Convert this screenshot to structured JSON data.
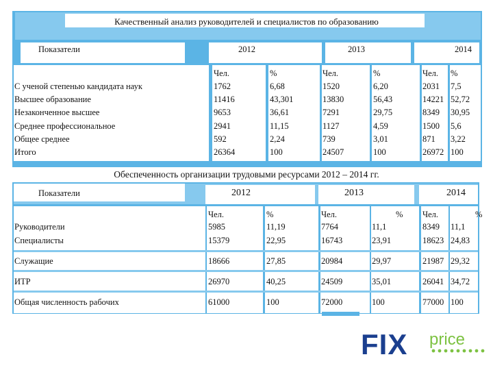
{
  "table1": {
    "title": "Качественный анализ руководителей и специалистов по образованию",
    "header_label": "Показатели",
    "years": [
      "2012",
      "2013",
      "2014"
    ],
    "sub_headers": [
      "Чел.",
      "%",
      "Чел.",
      "%",
      "Чел.",
      "%"
    ],
    "rows": [
      {
        "label": "С ученой степенью кандидата наук",
        "values": [
          "1762",
          "6,68",
          "1520",
          "6,20",
          "2031",
          "7,5"
        ]
      },
      {
        "label": "Высшее образование",
        "values": [
          "11416",
          "43,301",
          "13830",
          "56,43",
          "14221",
          "52,72"
        ]
      },
      {
        "label": "Незаконченное высшее",
        "values": [
          "9653",
          "36,61",
          "7291",
          "29,75",
          "8349",
          "30,95"
        ]
      },
      {
        "label": "Среднее профессиональное",
        "values": [
          "2941",
          "11,15",
          "1127",
          "4,59",
          "1500",
          "5,6"
        ]
      },
      {
        "label": "Общее среднее",
        "values": [
          "592",
          "2,24",
          "739",
          "3,01",
          "871",
          "3,22"
        ]
      },
      {
        "label": "Итого",
        "values": [
          "26364",
          "100",
          "24507",
          "100",
          "26972",
          "100"
        ]
      }
    ]
  },
  "table2": {
    "title": "Обеспеченность организации трудовыми ресурсами  2012 – 2014 гг.",
    "header_label": "Показатели",
    "years": [
      "2012",
      "2013",
      "2014"
    ],
    "sub_headers": [
      "Чел.",
      "%",
      "Чел.",
      "%",
      "Чел.",
      "%"
    ],
    "rows": [
      {
        "label": "Руководители",
        "values": [
          "5985",
          "11,19",
          "7764",
          "11,1",
          "8349",
          "11,1"
        ]
      },
      {
        "label": "Специалисты",
        "values": [
          "15379",
          "22,95",
          "16743",
          "23,91",
          "18623",
          "24,83"
        ]
      },
      {
        "label": "Служащие",
        "values": [
          "18666",
          "27,85",
          "20984",
          "29,97",
          "21987",
          "29,32"
        ]
      },
      {
        "label": "ИТР",
        "values": [
          "26970",
          "40,25",
          "24509",
          "35,01",
          "26041",
          "34,72"
        ]
      },
      {
        "label": "Общая численность рабочих",
        "values": [
          "61000",
          "100",
          "72000",
          "100",
          "77000",
          "100"
        ]
      }
    ]
  },
  "logo": {
    "fix": "FIX",
    "price": "price",
    "colors": {
      "fix": "#1b3f8f",
      "price": "#7dc242"
    }
  }
}
